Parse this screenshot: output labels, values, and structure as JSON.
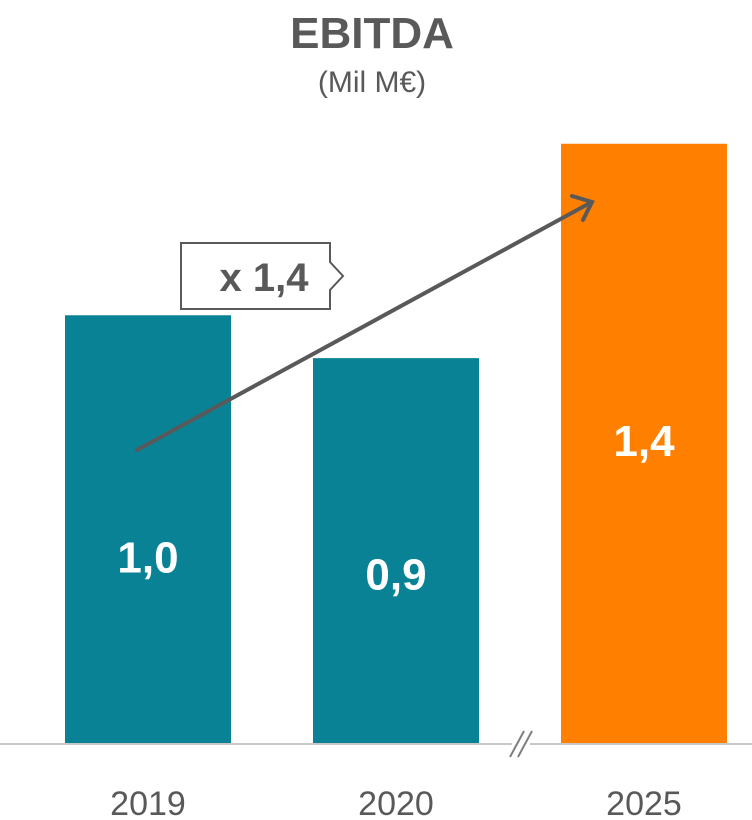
{
  "chart_data": {
    "type": "bar",
    "title": "EBITDA",
    "subtitle": "(Mil M€)",
    "categories": [
      "2019",
      "2020",
      "2025"
    ],
    "values": [
      1.0,
      0.9,
      1.4
    ],
    "data_labels": [
      "1,0",
      "0,9",
      "1,4"
    ],
    "bar_colors": [
      "#0a8296",
      "#0a8296",
      "#ff8000"
    ],
    "axis_break_between": [
      "2020",
      "2025"
    ],
    "annotation": {
      "text": "x 1,4",
      "arrow_from_category": "2019",
      "arrow_to_category": "2025"
    },
    "xlabel": "",
    "ylabel": "",
    "ylim": [
      0,
      1.6
    ],
    "grid": false,
    "legend": false
  },
  "colors": {
    "text": "#595959",
    "axis": "#c8c8c8",
    "arrow": "#595959"
  }
}
